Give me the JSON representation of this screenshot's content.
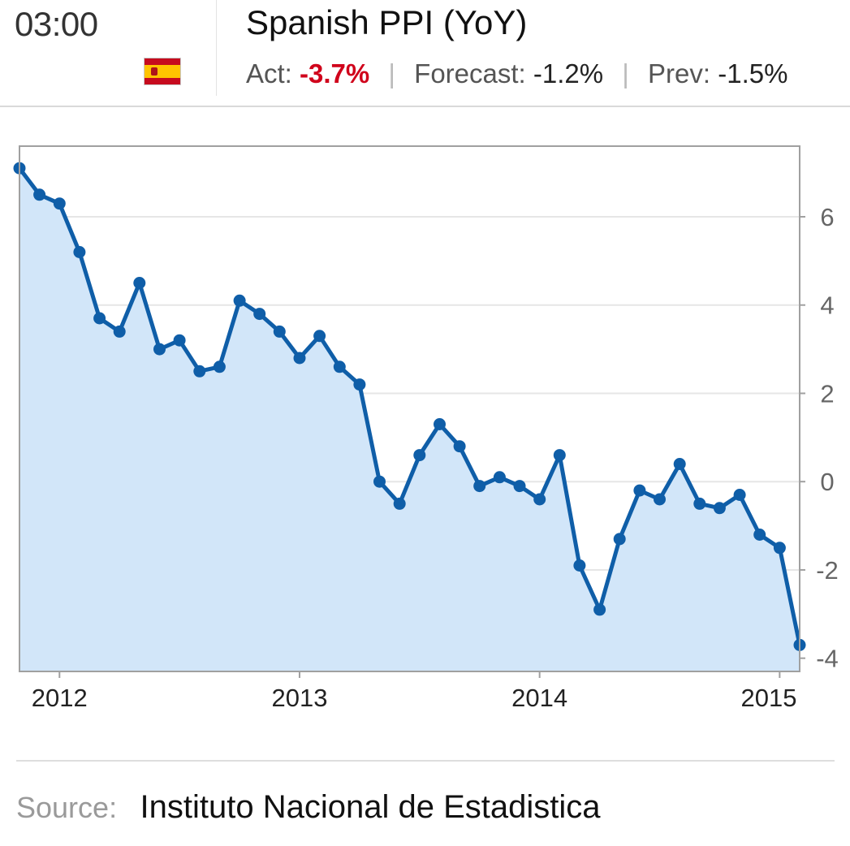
{
  "header": {
    "time": "03:00",
    "flag_icon": "spain-flag-icon",
    "title": "Spanish PPI (YoY)",
    "actual_label": "Act:",
    "actual_value": "-3.7%",
    "forecast_label": "Forecast:",
    "forecast_value": "-1.2%",
    "prev_label": "Prev:",
    "prev_value": "-1.5%",
    "separator": "|"
  },
  "colors": {
    "line": "#0f5ea8",
    "fill": "#d2e6f9",
    "actual_value": "#d0021b",
    "grid": "#e6e6e6",
    "frame": "#a0a0a0"
  },
  "chart_data": {
    "type": "area",
    "title": "Spanish PPI (YoY)",
    "xlabel": "",
    "ylabel": "",
    "x": [
      "2011-11",
      "2011-12",
      "2012-01",
      "2012-02",
      "2012-03",
      "2012-04",
      "2012-05",
      "2012-06",
      "2012-07",
      "2012-08",
      "2012-09",
      "2012-10",
      "2012-11",
      "2012-12",
      "2013-01",
      "2013-02",
      "2013-03",
      "2013-04",
      "2013-05",
      "2013-06",
      "2013-07",
      "2013-08",
      "2013-09",
      "2013-10",
      "2013-11",
      "2013-12",
      "2014-01",
      "2014-02",
      "2014-03",
      "2014-04",
      "2014-05",
      "2014-06",
      "2014-07",
      "2014-08",
      "2014-09",
      "2014-10",
      "2014-11",
      "2014-12",
      "2015-01",
      "2015-02"
    ],
    "values": [
      7.1,
      6.5,
      6.3,
      5.2,
      3.7,
      3.4,
      4.5,
      3.0,
      3.2,
      2.5,
      2.6,
      4.1,
      3.8,
      3.4,
      2.8,
      3.3,
      2.6,
      2.2,
      0.0,
      -0.5,
      0.6,
      1.3,
      0.8,
      -0.1,
      0.1,
      -0.1,
      -0.4,
      0.6,
      -1.9,
      -2.9,
      -1.3,
      -0.2,
      -0.4,
      0.4,
      -0.5,
      -0.6,
      -0.3,
      -1.2,
      -1.5,
      -3.7
    ],
    "x_ticks": [
      "2012",
      "2013",
      "2014",
      "2015"
    ],
    "y_ticks": [
      6,
      4,
      2,
      0,
      -2,
      -4
    ],
    "ylim": [
      -4.3,
      7.6
    ],
    "y_axis_side": "right",
    "grid": "horizontal",
    "legend": "none"
  },
  "footer": {
    "source_label": "Source:",
    "source_value": "Instituto Nacional de Estadistica"
  }
}
